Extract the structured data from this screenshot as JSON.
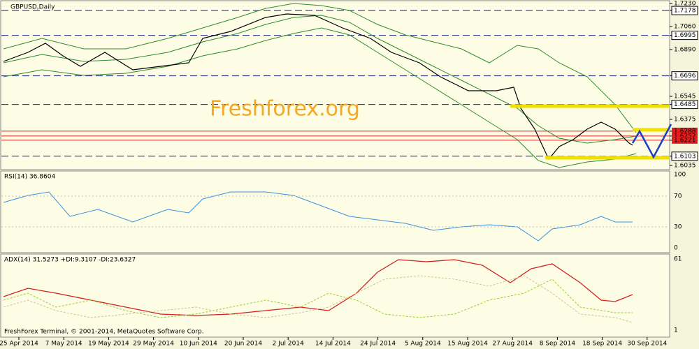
{
  "main_panel": {
    "title": "GBPUSD,Daily",
    "watermark": "Freshforex.org",
    "price_axis": [
      {
        "label": "1.7230",
        "style": "plain"
      },
      {
        "label": "1.7178",
        "style": "level"
      },
      {
        "label": "1.7060",
        "style": "plain"
      },
      {
        "label": "1.6995",
        "style": "level"
      },
      {
        "label": "1.6890",
        "style": "plain"
      },
      {
        "label": "1.6696",
        "style": "level"
      },
      {
        "label": "1.6545",
        "style": "plain"
      },
      {
        "label": "1.6485",
        "style": "level"
      },
      {
        "label": "1.6375",
        "style": "plain"
      },
      {
        "label": "1.6288",
        "style": "red"
      },
      {
        "label": "1.6252",
        "style": "red"
      },
      {
        "label": "1.6221",
        "style": "red"
      },
      {
        "label": "1.6103",
        "style": "level"
      },
      {
        "label": "1.6035",
        "style": "plain"
      }
    ]
  },
  "rsi_panel": {
    "title": "RSI(14) 36.8604",
    "axis": [
      "100",
      "70",
      "30",
      "0"
    ]
  },
  "adx_panel": {
    "title": "ADX(14) 31.5273 +DI:9.3107 -DI:23.6327",
    "axis": [
      "61",
      "1"
    ],
    "copyright": "FreshForex Terminal, © 2001-2014, MetaQuotes Software Corp."
  },
  "x_axis": [
    "25 Apr 2014",
    "7 May 2014",
    "19 May 2014",
    "29 May 2014",
    "10 Jun 2014",
    "20 Jun 2014",
    "2 Jul 2014",
    "14 Jul 2014",
    "24 Jul 2014",
    "5 Aug 2014",
    "15 Aug 2014",
    "27 Aug 2014",
    "8 Sep 2014",
    "18 Sep 2014",
    "30 Sep 2014"
  ]
}
